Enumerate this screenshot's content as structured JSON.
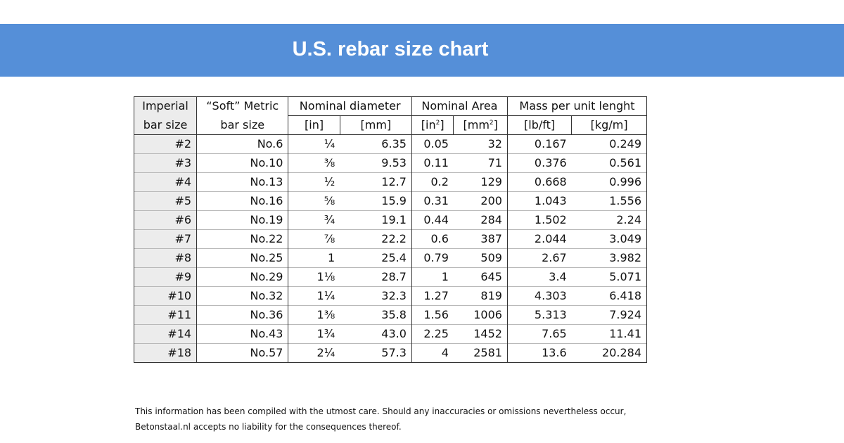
{
  "title": "U.S. rebar size chart",
  "table": {
    "headers": {
      "imperial_line1": "Imperial",
      "imperial_line2": "bar size",
      "metric_line1": "“Soft” Metric",
      "metric_line2": "bar size",
      "diameter": "Nominal diameter",
      "area": "Nominal Area",
      "mass": "Mass per unit lenght"
    },
    "units": {
      "dia_in": "[in]",
      "dia_mm": "[mm]",
      "area_in_prefix": "[in",
      "area_in_exp": "2",
      "area_in_suffix": "]",
      "area_mm_prefix": "[mm",
      "area_mm_exp": "2",
      "area_mm_suffix": "]",
      "mass_lb": "[lb/ft]",
      "mass_kg": "[kg/m]"
    },
    "rows": [
      {
        "imperial": "#2",
        "metric": "No.6",
        "dia_in": "¼",
        "dia_mm": "6.35",
        "area_in": "0.05",
        "area_mm": "32",
        "mass_lb": "0.167",
        "mass_kg": "0.249"
      },
      {
        "imperial": "#3",
        "metric": "No.10",
        "dia_in": "⅜",
        "dia_mm": "9.53",
        "area_in": "0.11",
        "area_mm": "71",
        "mass_lb": "0.376",
        "mass_kg": "0.561"
      },
      {
        "imperial": "#4",
        "metric": "No.13",
        "dia_in": "½",
        "dia_mm": "12.7",
        "area_in": "0.2",
        "area_mm": "129",
        "mass_lb": "0.668",
        "mass_kg": "0.996"
      },
      {
        "imperial": "#5",
        "metric": "No.16",
        "dia_in": "⅝",
        "dia_mm": "15.9",
        "area_in": "0.31",
        "area_mm": "200",
        "mass_lb": "1.043",
        "mass_kg": "1.556"
      },
      {
        "imperial": "#6",
        "metric": "No.19",
        "dia_in": "¾",
        "dia_mm": "19.1",
        "area_in": "0.44",
        "area_mm": "284",
        "mass_lb": "1.502",
        "mass_kg": "2.24"
      },
      {
        "imperial": "#7",
        "metric": "No.22",
        "dia_in": "⅞",
        "dia_mm": "22.2",
        "area_in": "0.6",
        "area_mm": "387",
        "mass_lb": "2.044",
        "mass_kg": "3.049"
      },
      {
        "imperial": "#8",
        "metric": "No.25",
        "dia_in": "1",
        "dia_mm": "25.4",
        "area_in": "0.79",
        "area_mm": "509",
        "mass_lb": "2.67",
        "mass_kg": "3.982"
      },
      {
        "imperial": "#9",
        "metric": "No.29",
        "dia_in": "1⅛",
        "dia_mm": "28.7",
        "area_in": "1",
        "area_mm": "645",
        "mass_lb": "3.4",
        "mass_kg": "5.071"
      },
      {
        "imperial": "#10",
        "metric": "No.32",
        "dia_in": "1¼",
        "dia_mm": "32.3",
        "area_in": "1.27",
        "area_mm": "819",
        "mass_lb": "4.303",
        "mass_kg": "6.418"
      },
      {
        "imperial": "#11",
        "metric": "No.36",
        "dia_in": "1⅜",
        "dia_mm": "35.8",
        "area_in": "1.56",
        "area_mm": "1006",
        "mass_lb": "5.313",
        "mass_kg": "7.924"
      },
      {
        "imperial": "#14",
        "metric": "No.43",
        "dia_in": "1¾",
        "dia_mm": "43.0",
        "area_in": "2.25",
        "area_mm": "1452",
        "mass_lb": "7.65",
        "mass_kg": "11.41"
      },
      {
        "imperial": "#18",
        "metric": "No.57",
        "dia_in": "2¼",
        "dia_mm": "57.3",
        "area_in": "4",
        "area_mm": "2581",
        "mass_lb": "13.6",
        "mass_kg": "20.284"
      }
    ]
  },
  "disclaimer": {
    "line1": "This information has been compiled with the utmost care. Should any inaccuracies or omissions nevertheless occur,",
    "line2": "Betonstaal.nl accepts no liability for the consequences thereof."
  },
  "colors": {
    "banner": "#558fd8",
    "shade": "#ececec"
  }
}
